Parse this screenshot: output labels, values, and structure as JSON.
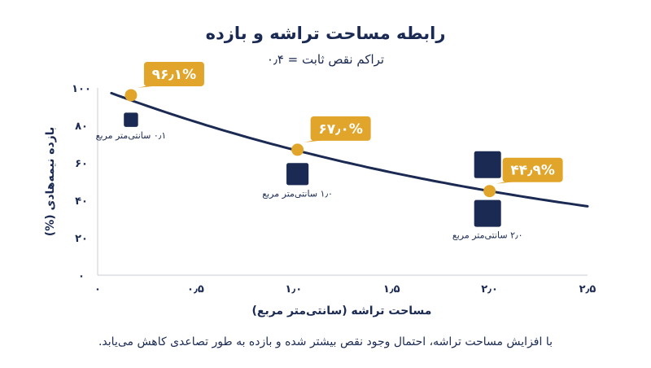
{
  "chart_data": {
    "type": "line",
    "title": "رابطه مساحت تراشه و بازده",
    "subtitle": "تراکم نقص ثابت = ۰٫۴",
    "xlabel": "مساحت تراشه (سانتی‌متر مربع)",
    "ylabel": "بازده نیمه‌هادی (%)",
    "xlim": [
      0,
      2.5
    ],
    "ylim": [
      0,
      100
    ],
    "x_ticks": [
      "۰",
      "۰٫۵",
      "۱٫۰",
      "۱٫۵",
      "۲٫۰",
      "۲٫۵"
    ],
    "y_ticks": [
      "۰",
      "۲۰",
      "۴۰",
      "۶۰",
      "۸۰",
      "۱۰۰"
    ],
    "curve": {
      "model": "yield = 100 × exp(-0.4 × area)",
      "x_from": 0.07,
      "x_to": 2.5,
      "color": "#1b2a52"
    },
    "highlight_points": [
      {
        "x": 0.17,
        "y": 96.1,
        "label": "۹۶٫۱%"
      },
      {
        "x": 1.02,
        "y": 67.0,
        "label": "۶۷٫۰%"
      },
      {
        "x": 2.0,
        "y": 44.9,
        "label": "۴۴٫۹%"
      }
    ],
    "die_markers": [
      {
        "label": "۰٫۱ سانتی‌متر مربع",
        "x": 0.17,
        "y": 83,
        "size": 0.1
      },
      {
        "label": "۱٫۰ سانتی‌متر مربع",
        "x": 1.02,
        "y": 54,
        "size": 1.0
      },
      {
        "label": "۲٫۰ سانتی‌متر مربع",
        "x": 1.99,
        "y": 33,
        "size": 2.0
      },
      {
        "label": "",
        "x": 1.99,
        "y": 59,
        "size": 2.0
      }
    ],
    "colors": {
      "curve": "#1b2a52",
      "accent": "#e0a52a",
      "die": "#1b2a52"
    },
    "grid": false,
    "legend": "none"
  },
  "note": "با افزایش مساحت تراشه، احتمال وجود نقص بیشتر شده و بازده به طور تصاعدی کاهش می‌یابد."
}
